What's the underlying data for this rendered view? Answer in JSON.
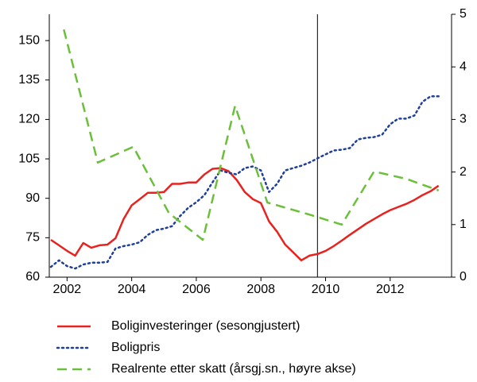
{
  "chart_data": {
    "type": "line",
    "xlim": [
      2001.45,
      2013.9
    ],
    "xticks": [
      2002,
      2004,
      2006,
      2008,
      2010,
      2012
    ],
    "ylim": [
      60,
      160
    ],
    "yticks": [
      60,
      75,
      90,
      105,
      120,
      135,
      150
    ],
    "y2lim": [
      0,
      5
    ],
    "y2ticks": [
      0,
      1,
      2,
      3,
      4,
      5
    ],
    "vline_x": 2009.75,
    "series": [
      {
        "name": "Boliginvesteringer (sesongjustert)",
        "color": "#e8221e",
        "line_style": "solid",
        "x": [
          2001.5,
          2001.75,
          2002,
          2002.25,
          2002.5,
          2002.75,
          2003,
          2003.25,
          2003.5,
          2003.75,
          2004,
          2004.25,
          2004.5,
          2004.75,
          2005,
          2005.25,
          2005.5,
          2005.75,
          2006,
          2006.25,
          2006.5,
          2006.75,
          2007,
          2007.25,
          2007.5,
          2007.75,
          2008,
          2008.25,
          2008.5,
          2008.75,
          2009,
          2009.25,
          2009.5,
          2009.75,
          2010,
          2010.25,
          2010.5,
          2010.75,
          2011,
          2011.25,
          2011.5,
          2011.75,
          2012,
          2012.25,
          2012.5,
          2012.75,
          2013,
          2013.25,
          2013.5
        ],
        "values": [
          74.2,
          72.1,
          70,
          68.2,
          73,
          71.2,
          72.1,
          72.4,
          74.8,
          82.1,
          87.3,
          89.7,
          92.1,
          92.1,
          92.4,
          95.5,
          95.5,
          96,
          96,
          99.1,
          101.2,
          101.5,
          100.3,
          97,
          92.4,
          89.7,
          88.2,
          81.2,
          77.3,
          72.4,
          69.4,
          66.4,
          68.2,
          68.8,
          70,
          71.8,
          73.9,
          76.1,
          78.2,
          80.3,
          82.1,
          83.9,
          85.5,
          86.7,
          87.9,
          89.4,
          91.2,
          92.7,
          94.8
        ]
      },
      {
        "name": "Boligpris",
        "color": "#1f3f99",
        "line_style": "dotted",
        "x": [
          2001.5,
          2001.75,
          2002,
          2002.25,
          2002.5,
          2002.75,
          2003,
          2003.25,
          2003.5,
          2003.75,
          2004,
          2004.25,
          2004.5,
          2004.75,
          2005,
          2005.25,
          2005.5,
          2005.75,
          2006,
          2006.25,
          2006.5,
          2006.75,
          2007,
          2007.25,
          2007.5,
          2007.75,
          2008,
          2008.25,
          2008.5,
          2008.75,
          2009,
          2009.25,
          2009.5,
          2009.75,
          2010,
          2010.25,
          2010.5,
          2010.75,
          2011,
          2011.25,
          2011.5,
          2011.75,
          2012,
          2012.25,
          2012.5,
          2012.75,
          2013,
          2013.25,
          2013.5
        ],
        "values": [
          63.9,
          66.4,
          64.2,
          63.3,
          64.8,
          65.5,
          65.5,
          65.8,
          70.9,
          71.8,
          72.4,
          73.3,
          76.1,
          77.9,
          78.5,
          79.4,
          83.3,
          86.4,
          88.5,
          91.2,
          96,
          100.6,
          99.7,
          99.1,
          101.5,
          102.1,
          100.6,
          92.4,
          95.5,
          100.6,
          101.5,
          102.4,
          103.6,
          105.2,
          106.7,
          108.2,
          108.5,
          109.1,
          112.4,
          113,
          113.3,
          114.2,
          118.2,
          120.3,
          120.3,
          121.5,
          126.7,
          128.8,
          128.8
        ]
      },
      {
        "name": "Realrente etter skatt (årsgj.sn., høyre akse)",
        "color": "#6cbf3a",
        "line_style": "dashed",
        "axis": "y2",
        "x": [
          2001.9,
          2002.95,
          2004.05,
          2005.15,
          2006.2,
          2007.2,
          2008.2,
          2009.5,
          2010.5,
          2011.5,
          2012.5,
          2013.5
        ],
        "values": [
          4.71,
          2.18,
          2.48,
          1.22,
          0.71,
          3.26,
          1.42,
          1.19,
          1.0,
          2.01,
          1.87,
          1.65
        ]
      }
    ]
  }
}
